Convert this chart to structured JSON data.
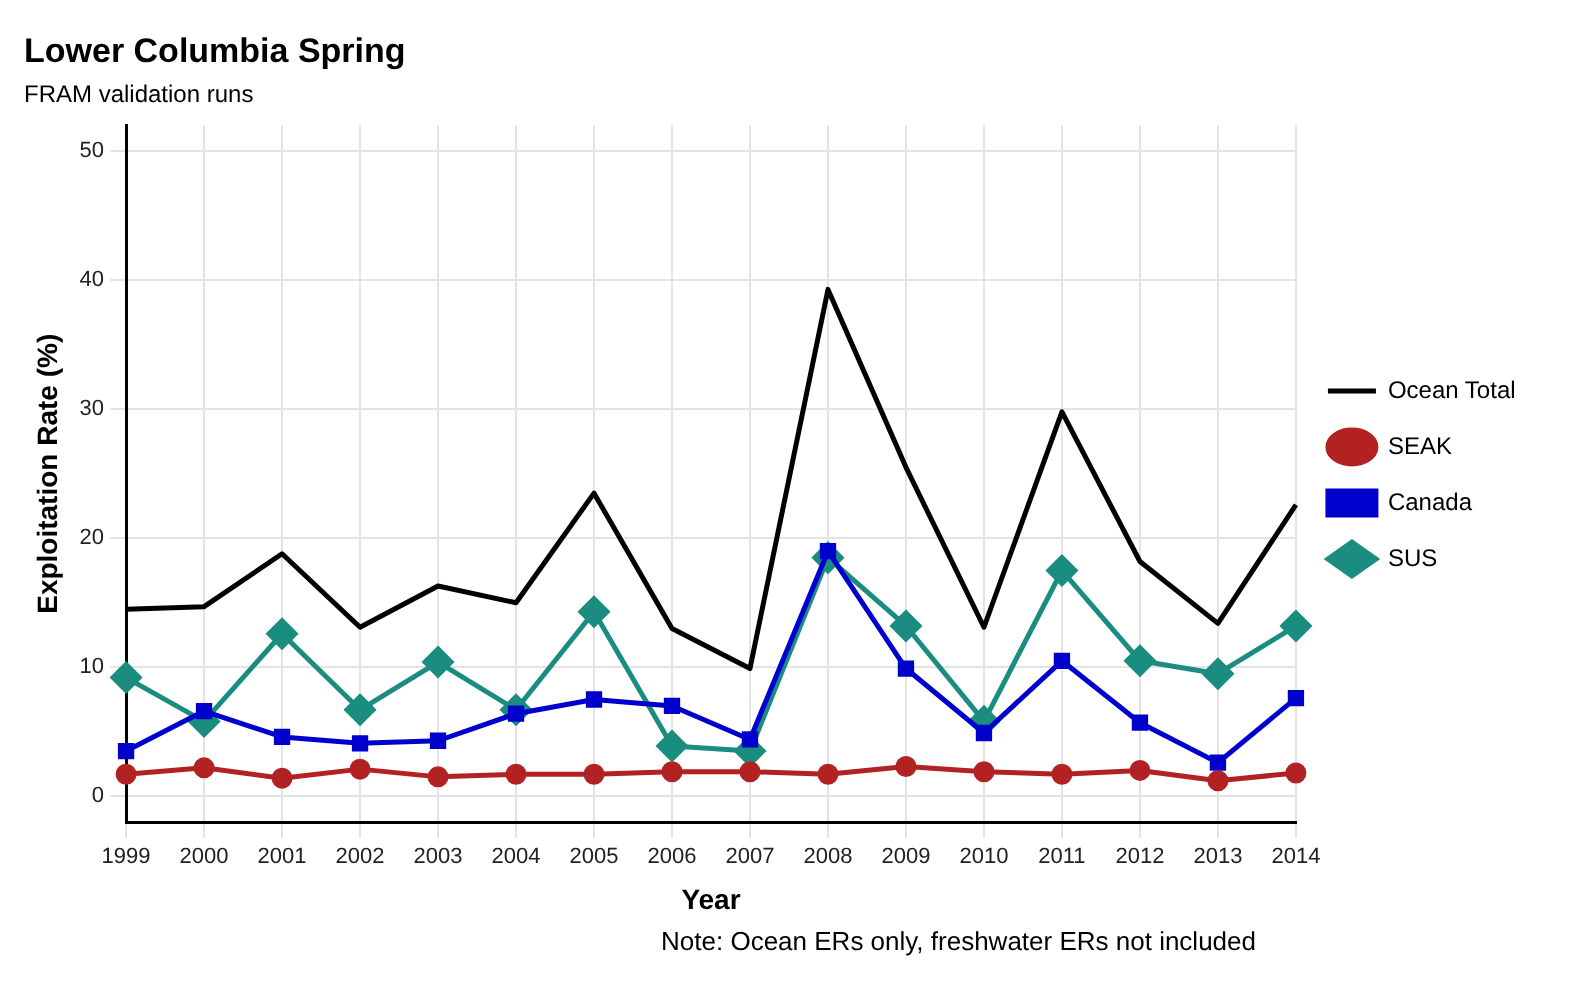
{
  "chart_data": {
    "type": "line",
    "title": "Lower Columbia Spring",
    "subtitle": "FRAM validation runs",
    "xlabel": "Year",
    "ylabel": "Exploitation Rate (%)",
    "categories": [
      "1999",
      "2000",
      "2001",
      "2002",
      "2003",
      "2004",
      "2005",
      "2006",
      "2007",
      "2008",
      "2009",
      "2010",
      "2011",
      "2012",
      "2013",
      "2014"
    ],
    "series": [
      {
        "name": "Ocean Total",
        "color": "#000000",
        "marker": "none",
        "values": [
          14.5,
          14.7,
          18.8,
          13.1,
          16.3,
          15.0,
          23.5,
          13.0,
          9.9,
          39.3,
          25.5,
          13.1,
          29.8,
          18.2,
          13.4,
          22.6
        ]
      },
      {
        "name": "SEAK",
        "color": "#b22222",
        "marker": "circle",
        "values": [
          1.7,
          2.2,
          1.4,
          2.1,
          1.5,
          1.7,
          1.7,
          1.9,
          1.9,
          1.7,
          2.3,
          1.9,
          1.7,
          2.0,
          1.2,
          1.8
        ]
      },
      {
        "name": "Canada",
        "color": "#0000cc",
        "marker": "square",
        "values": [
          3.5,
          6.6,
          4.6,
          4.1,
          4.3,
          6.4,
          7.5,
          7.0,
          4.4,
          19.0,
          9.9,
          4.9,
          10.5,
          5.7,
          2.6,
          7.6
        ]
      },
      {
        "name": "SUS",
        "color": "#1a8c80",
        "marker": "diamond",
        "values": [
          9.2,
          5.8,
          12.6,
          6.7,
          10.4,
          6.7,
          14.3,
          3.9,
          3.5,
          18.5,
          13.2,
          5.8,
          17.5,
          10.5,
          9.5,
          13.2
        ]
      }
    ],
    "ylim": [
      -2,
      52
    ],
    "yticks": [
      0,
      10,
      20,
      30,
      40,
      50
    ],
    "grid": true,
    "legend": "right",
    "annotations": [
      "Note: Ocean ERs only, freshwater ERs not included"
    ]
  }
}
